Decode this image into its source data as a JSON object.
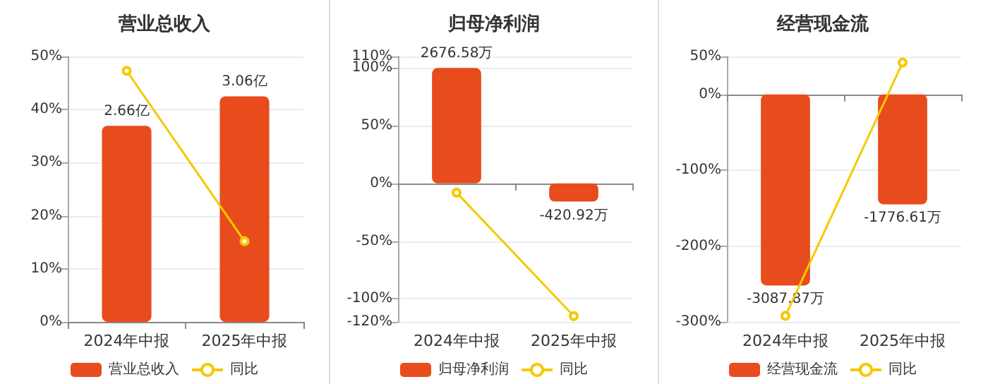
{
  "chart_data": [
    {
      "type": "bar",
      "title": "营业总收入",
      "categories": [
        "2024年中报",
        "2025年中报"
      ],
      "ylim": [
        0,
        50
      ],
      "yticks": [
        {
          "value": 0,
          "label": "0%"
        },
        {
          "value": 10,
          "label": "10%"
        },
        {
          "value": 20,
          "label": "20%"
        },
        {
          "value": 30,
          "label": "30%"
        },
        {
          "value": 40,
          "label": "40%"
        },
        {
          "value": 50,
          "label": "50%"
        }
      ],
      "y2lim": [
        0,
        3.6
      ],
      "grid": "y",
      "legend": "bottom",
      "series": [
        {
          "name": "营业总收入",
          "axis": "y2",
          "color": "#e84c1c",
          "values": [
            2.66,
            3.06
          ],
          "value_labels": [
            "2.66亿",
            "3.06亿"
          ]
        },
        {
          "name": "同比",
          "type": "line",
          "color": "#f5c900",
          "marker": "circle",
          "values": [
            47.3,
            15.2
          ]
        }
      ]
    },
    {
      "type": "bar",
      "title": "归母净利润",
      "categories": [
        "2024年中报",
        "2025年中报"
      ],
      "ylim": [
        -120,
        110
      ],
      "yticks": [
        {
          "value": -120,
          "label": "-120%"
        },
        {
          "value": -100,
          "label": "-100%"
        },
        {
          "value": -50,
          "label": "-50%"
        },
        {
          "value": 0,
          "label": "0%"
        },
        {
          "value": 50,
          "label": "50%"
        },
        {
          "value": 100,
          "label": "100%"
        },
        {
          "value": 110,
          "label": "110%"
        }
      ],
      "y2lim": [
        -3212,
        2944
      ],
      "grid": "y",
      "legend": "bottom",
      "series": [
        {
          "name": "归母净利润",
          "axis": "y2",
          "color": "#e84c1c",
          "values": [
            2676.58,
            -420.92
          ],
          "value_labels": [
            "2676.58万",
            "-420.92万"
          ]
        },
        {
          "name": "同比",
          "type": "line",
          "color": "#f5c900",
          "marker": "circle",
          "values": [
            -8,
            -115
          ]
        }
      ]
    },
    {
      "type": "bar",
      "title": "经营现金流",
      "categories": [
        "2024年中报",
        "2025年中报"
      ],
      "ylim": [
        -300,
        50
      ],
      "yticks": [
        {
          "value": -300,
          "label": "-300%"
        },
        {
          "value": -200,
          "label": "-200%"
        },
        {
          "value": -100,
          "label": "-100%"
        },
        {
          "value": 0,
          "label": "0%"
        },
        {
          "value": 50,
          "label": "50%"
        }
      ],
      "y2lim": [
        -3676,
        613
      ],
      "grid": "y",
      "legend": "bottom",
      "series": [
        {
          "name": "经营现金流",
          "axis": "y2",
          "color": "#e84c1c",
          "values": [
            -3087.87,
            -1776.61
          ],
          "value_labels": [
            "-3087.87万",
            "-1776.61万"
          ]
        },
        {
          "name": "同比",
          "type": "line",
          "color": "#f5c900",
          "marker": "circle",
          "values": [
            -292,
            42
          ]
        }
      ]
    }
  ]
}
